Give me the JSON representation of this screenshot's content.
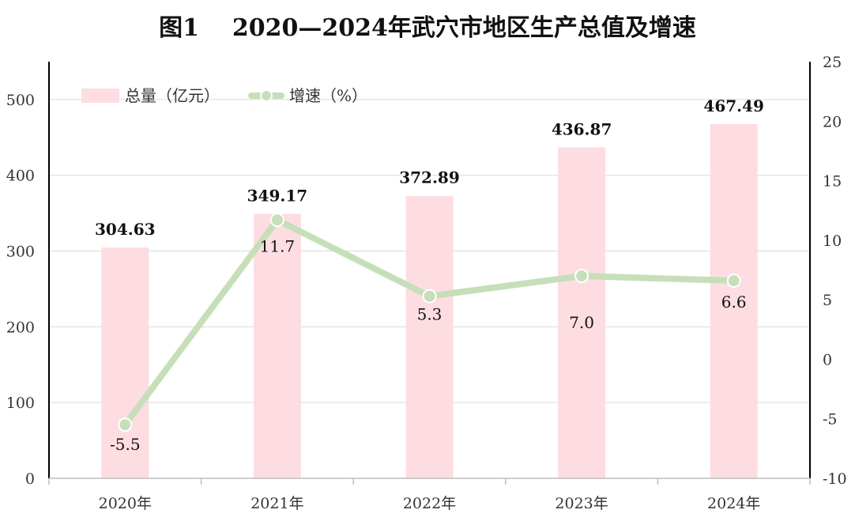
{
  "title": "图1    2020—2024年武穴市地区生产总值及增速",
  "legend": {
    "placement": "top-left"
  },
  "colors": {
    "bar": "#fddde1",
    "line": "#c6dfb9",
    "marker_fill": "#c6dfb9",
    "marker_stroke": "#ffffff",
    "grid": "#d9d9d9"
  },
  "chart_data": {
    "type": "bar",
    "categories": [
      "2020年",
      "2021年",
      "2022年",
      "2023年",
      "2024年"
    ],
    "series": [
      {
        "name": "总量（亿元）",
        "type": "bar",
        "axis": "left",
        "values": [
          304.63,
          349.17,
          372.89,
          436.87,
          467.49
        ],
        "labels": [
          "304.63",
          "349.17",
          "372.89",
          "436.87",
          "467.49"
        ]
      },
      {
        "name": "增速（%）",
        "type": "line",
        "axis": "right",
        "values": [
          -5.5,
          11.7,
          5.3,
          7.0,
          6.6
        ],
        "labels": [
          "-5.5",
          "11.7",
          "5.3",
          "7.0",
          "6.6"
        ]
      }
    ],
    "y_left": {
      "min": 0,
      "max": 550,
      "ticks": [
        "0",
        "100",
        "200",
        "300",
        "400",
        "500"
      ],
      "tick_values": [
        0,
        100,
        200,
        300,
        400,
        500
      ]
    },
    "y_right": {
      "min": -10,
      "max": 25,
      "ticks": [
        "-10",
        "-5",
        "0",
        "5",
        "10",
        "15",
        "20",
        "25"
      ],
      "tick_values": [
        -10,
        -5,
        0,
        5,
        10,
        15,
        20,
        25
      ]
    },
    "grid": true
  }
}
